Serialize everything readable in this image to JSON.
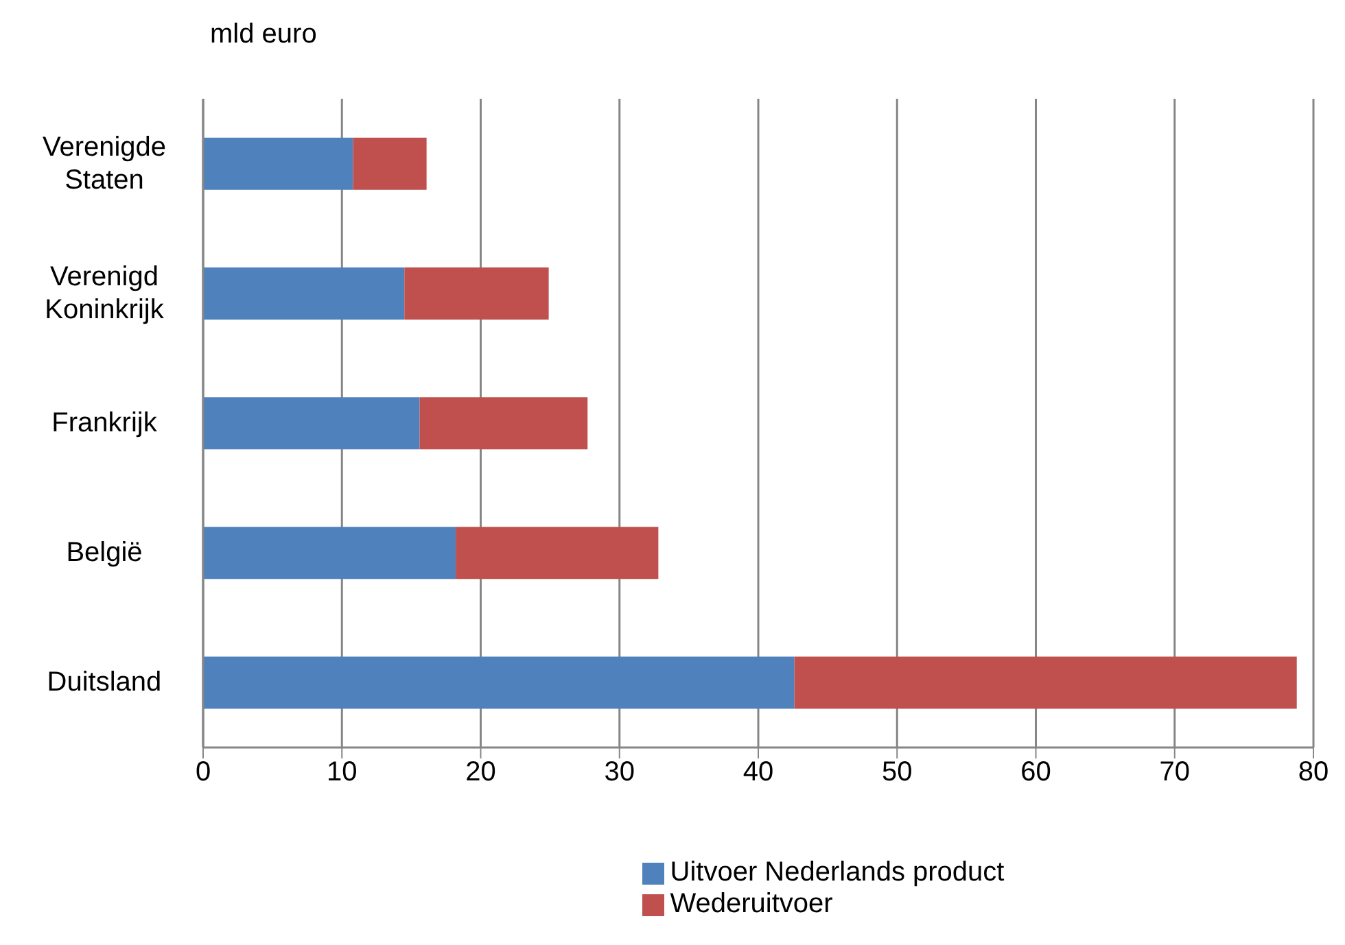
{
  "chart_data": {
    "type": "bar",
    "orientation": "horizontal",
    "stacked": true,
    "ylabel": "mld euro",
    "categories": [
      "Verenigde Staten",
      "Verenigd Koninkrijk",
      "Frankrijk",
      "België",
      "Duitsland"
    ],
    "series": [
      {
        "name": "Uitvoer Nederlands product",
        "color": "#4f81bd",
        "values": [
          10.8,
          14.5,
          15.6,
          18.2,
          42.6
        ]
      },
      {
        "name": "Wederuitvoer",
        "color": "#c0504d",
        "values": [
          5.3,
          10.4,
          12.1,
          14.6,
          36.2
        ]
      }
    ],
    "xlim": [
      0,
      80
    ],
    "xticks": [
      0,
      10,
      20,
      30,
      40,
      50,
      60,
      70,
      80
    ],
    "grid": "x",
    "legend": "bottom"
  }
}
